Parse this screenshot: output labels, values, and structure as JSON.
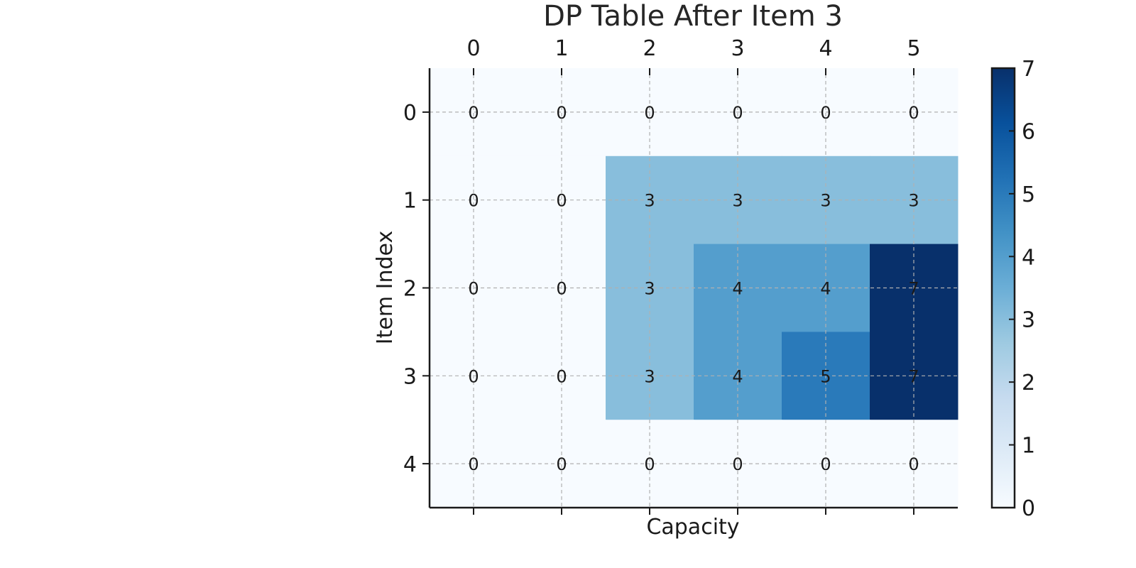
{
  "chart_data": {
    "type": "heatmap",
    "title": "DP Table After Item 3",
    "xlabel": "Capacity",
    "ylabel": "Item Index",
    "x_ticks": [
      "0",
      "1",
      "2",
      "3",
      "4",
      "5"
    ],
    "y_ticks": [
      "0",
      "1",
      "2",
      "3",
      "4"
    ],
    "x_axis_position": "top",
    "grid": true,
    "colormap": "Blues",
    "vmin": 0,
    "vmax": 7,
    "colorbar_ticks": [
      "0",
      "1",
      "2",
      "3",
      "4",
      "5",
      "6",
      "7"
    ],
    "values": [
      [
        0,
        0,
        0,
        0,
        0,
        0
      ],
      [
        0,
        0,
        3,
        3,
        3,
        3
      ],
      [
        0,
        0,
        3,
        4,
        4,
        7
      ],
      [
        0,
        0,
        3,
        4,
        5,
        7
      ],
      [
        0,
        0,
        0,
        0,
        0,
        0
      ]
    ]
  }
}
